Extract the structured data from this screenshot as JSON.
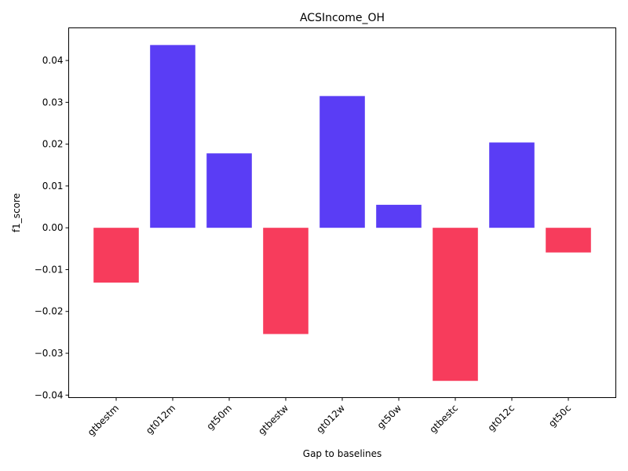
{
  "chart_data": {
    "type": "bar",
    "title": "ACSIncome_OH",
    "xlabel": "Gap to baselines",
    "ylabel": "f1_score",
    "categories": [
      "gtbestm",
      "gt012m",
      "gt50m",
      "gtbestw",
      "gt012w",
      "gt50w",
      "gtbestc",
      "gt012c",
      "gt50c"
    ],
    "values": [
      -0.0131,
      0.0437,
      0.0178,
      -0.0254,
      0.0315,
      0.0055,
      -0.0366,
      0.0204,
      -0.0059
    ],
    "ylim": [
      -0.0406,
      0.0478
    ],
    "yticks": [
      -0.04,
      -0.03,
      -0.02,
      -0.01,
      0.0,
      0.01,
      0.02,
      0.03,
      0.04
    ],
    "ytick_labels": [
      "−0.04",
      "−0.03",
      "−0.02",
      "−0.01",
      "0.00",
      "0.01",
      "0.02",
      "0.03",
      "0.04"
    ],
    "colors": {
      "positive": "#5a3df5",
      "negative": "#f73c5c"
    },
    "grid": false,
    "legend": "none"
  }
}
